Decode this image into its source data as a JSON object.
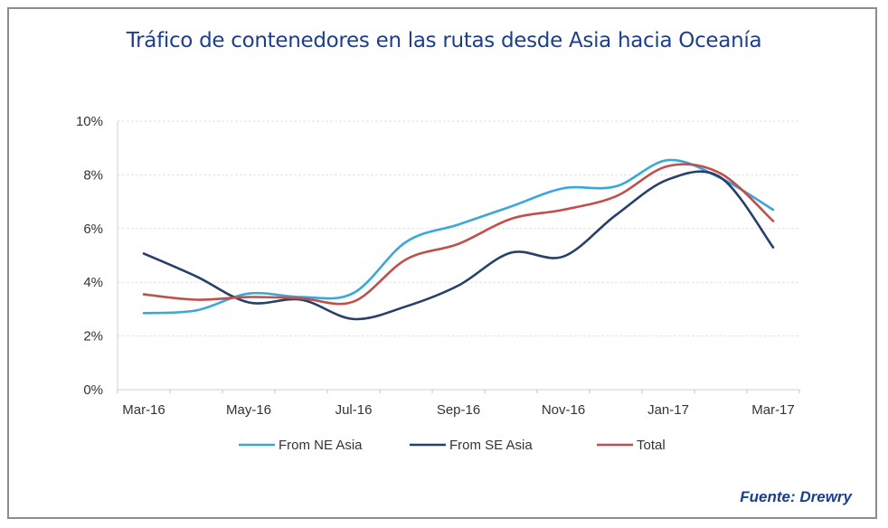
{
  "chart_data": {
    "type": "line",
    "title": "Tráfico de contenedores en las rutas desde Asia hacia Oceanía",
    "xlabel": "",
    "ylabel": "",
    "ylim": [
      0,
      10
    ],
    "yticks": [
      "0%",
      "2%",
      "4%",
      "6%",
      "8%",
      "10%"
    ],
    "ytick_values": [
      0,
      2,
      4,
      6,
      8,
      10
    ],
    "x": [
      "Mar-16",
      "Apr-16",
      "May-16",
      "Jun-16",
      "Jul-16",
      "Aug-16",
      "Sep-16",
      "Oct-16",
      "Nov-16",
      "Dec-16",
      "Jan-17",
      "Feb-17",
      "Mar-17"
    ],
    "xtick_labels": [
      "Mar-16",
      "May-16",
      "Jul-16",
      "Sep-16",
      "Nov-16",
      "Jan-17",
      "Mar-17"
    ],
    "grid": true,
    "legend_position": "bottom",
    "series": [
      {
        "name": "From NE Asia",
        "color": "#3ba7d8",
        "values": [
          2.85,
          2.95,
          3.58,
          3.45,
          3.6,
          5.5,
          6.15,
          6.82,
          7.5,
          7.57,
          8.55,
          7.88,
          6.7
        ]
      },
      {
        "name": "From SE Asia",
        "color": "#263f6b",
        "values": [
          5.07,
          4.22,
          3.25,
          3.35,
          2.63,
          3.1,
          3.88,
          5.1,
          4.96,
          6.5,
          7.83,
          7.9,
          5.3
        ]
      },
      {
        "name": "Total",
        "color": "#c0504d",
        "values": [
          3.55,
          3.35,
          3.45,
          3.4,
          3.28,
          4.85,
          5.43,
          6.36,
          6.7,
          7.2,
          8.33,
          8.05,
          6.28
        ]
      }
    ]
  },
  "source": "Fuente: Drewry"
}
